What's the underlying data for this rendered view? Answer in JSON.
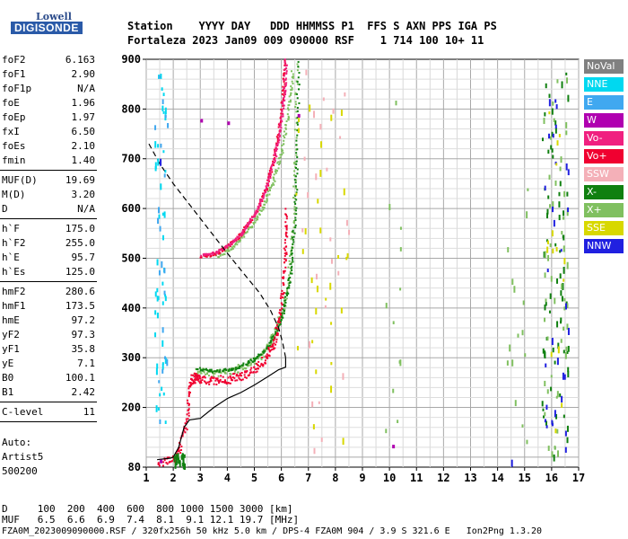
{
  "logo": {
    "top": "Lowell",
    "bottom": "DIGISONDE"
  },
  "header": {
    "line1": "Station    YYYY DAY   DDD HHMMSS P1  FFS S AXN PPS IGA PS",
    "line2": "Fortaleza 2023 Jan09 009 090000 RSF    1 714 100 10+ 11"
  },
  "params_group1": [
    {
      "name": "foF2",
      "value": "6.163"
    },
    {
      "name": "foF1",
      "value": "2.90"
    },
    {
      "name": "foF1p",
      "value": "N/A"
    },
    {
      "name": "foE",
      "value": "1.96"
    },
    {
      "name": "foEp",
      "value": "1.97"
    },
    {
      "name": "fxI",
      "value": "6.50"
    },
    {
      "name": "foEs",
      "value": "2.10"
    },
    {
      "name": "fmin",
      "value": "1.40"
    }
  ],
  "params_group2": [
    {
      "name": "MUF(D)",
      "value": "19.69"
    },
    {
      "name": "M(D)",
      "value": "3.20"
    },
    {
      "name": "D",
      "value": "N/A"
    }
  ],
  "params_group3": [
    {
      "name": "h`F",
      "value": "175.0"
    },
    {
      "name": "h`F2",
      "value": "255.0"
    },
    {
      "name": "h`E",
      "value": "95.7"
    },
    {
      "name": "h`Es",
      "value": "125.0"
    }
  ],
  "params_group4": [
    {
      "name": "hmF2",
      "value": "280.6"
    },
    {
      "name": "hmF1",
      "value": "173.5"
    },
    {
      "name": "hmE",
      "value": "97.2"
    },
    {
      "name": "yF2",
      "value": "97.3"
    },
    {
      "name": "yF1",
      "value": "35.8"
    },
    {
      "name": "yE",
      "value": "7.1"
    },
    {
      "name": "B0",
      "value": "100.1"
    },
    {
      "name": "B1",
      "value": "2.42"
    }
  ],
  "params_group5": [
    {
      "name": "C-level",
      "value": "11"
    }
  ],
  "autoscaling": {
    "line1": "Auto:",
    "line2": "Artist5",
    "line3": "500200"
  },
  "legend": [
    {
      "label": "NoVal",
      "color": "#808080"
    },
    {
      "label": "NNE",
      "color": "#00d8f0"
    },
    {
      "label": "E",
      "color": "#40a8f0"
    },
    {
      "label": "W",
      "color": "#b000b0"
    },
    {
      "label": "Vo-",
      "color": "#f02080"
    },
    {
      "label": "Vo+",
      "color": "#f00030"
    },
    {
      "label": "SSW",
      "color": "#f4b0b8"
    },
    {
      "label": "X-",
      "color": "#108010"
    },
    {
      "label": "X+",
      "color": "#80c060"
    },
    {
      "label": "SSE",
      "color": "#d8d800"
    },
    {
      "label": "NNW",
      "color": "#2020e0"
    }
  ],
  "bottom": {
    "d_line": "D     100  200  400  600  800 1000 1500 3000 [km]",
    "muf_line": "MUF   6.5  6.6  6.9  7.4  8.1  9.1 12.1 19.7 [MHz]",
    "footer": "FZA0M_2023009090000.RSF / 320fx256h 50 kHz 5.0 km / DPS-4 FZA0M 904 / 3.9 S 321.6 E   Ion2Png 1.3.20"
  },
  "chart_data": {
    "type": "scatter",
    "x_ticks": [
      "1",
      "2",
      "3",
      "4",
      "5",
      "6",
      "7",
      "8",
      "9",
      "10",
      "11",
      "12",
      "13",
      "14",
      "15",
      "16",
      "17"
    ],
    "y_ticks": [
      "80",
      "200",
      "300",
      "400",
      "500",
      "600",
      "700",
      "800",
      "900"
    ],
    "xlim": [
      1,
      17
    ],
    "ylim": [
      80,
      900
    ],
    "grid": true,
    "o_trace_lower": [
      [
        1.4,
        93
      ],
      [
        2.0,
        95
      ],
      [
        2.2,
        120
      ],
      [
        2.5,
        180
      ],
      [
        2.6,
        255
      ],
      [
        2.8,
        262
      ],
      [
        3.0,
        258
      ],
      [
        3.5,
        255
      ],
      [
        4.0,
        258
      ],
      [
        4.5,
        265
      ],
      [
        5.0,
        280
      ],
      [
        5.4,
        300
      ],
      [
        5.7,
        330
      ],
      [
        5.9,
        380
      ],
      [
        6.05,
        450
      ],
      [
        6.12,
        520
      ],
      [
        6.16,
        600
      ]
    ],
    "o_trace_upper": [
      [
        3.0,
        505
      ],
      [
        3.5,
        510
      ],
      [
        4.0,
        525
      ],
      [
        4.5,
        550
      ],
      [
        5.0,
        590
      ],
      [
        5.4,
        640
      ],
      [
        5.7,
        700
      ],
      [
        5.9,
        760
      ],
      [
        6.05,
        830
      ],
      [
        6.12,
        900
      ]
    ],
    "x_trace_lower": [
      [
        2.8,
        275
      ],
      [
        3.5,
        270
      ],
      [
        4.2,
        275
      ],
      [
        4.8,
        290
      ],
      [
        5.3,
        310
      ],
      [
        5.7,
        345
      ],
      [
        6.0,
        390
      ],
      [
        6.25,
        460
      ],
      [
        6.4,
        560
      ],
      [
        6.5,
        700
      ],
      [
        6.55,
        900
      ]
    ],
    "x_trace_upper": [
      [
        3.6,
        505
      ],
      [
        4.2,
        525
      ],
      [
        4.8,
        560
      ],
      [
        5.3,
        605
      ],
      [
        5.7,
        660
      ],
      [
        6.0,
        720
      ],
      [
        6.25,
        800
      ],
      [
        6.4,
        880
      ]
    ],
    "profile": [
      [
        1.4,
        95
      ],
      [
        1.9,
        98
      ],
      [
        2.0,
        100
      ],
      [
        2.2,
        120
      ],
      [
        2.4,
        160
      ],
      [
        2.6,
        175
      ],
      [
        3.0,
        178
      ],
      [
        3.5,
        200
      ],
      [
        4.0,
        218
      ],
      [
        4.5,
        230
      ],
      [
        5.0,
        245
      ],
      [
        5.5,
        262
      ],
      [
        5.9,
        276
      ],
      [
        6.16,
        281
      ],
      [
        6.16,
        300
      ],
      [
        6.05,
        330
      ],
      [
        5.9,
        360
      ],
      [
        5.6,
        395
      ],
      [
        5.2,
        430
      ],
      [
        4.6,
        470
      ],
      [
        4.0,
        510
      ],
      [
        3.5,
        545
      ],
      [
        3.0,
        580
      ],
      [
        2.5,
        615
      ],
      [
        2.0,
        650
      ],
      [
        1.5,
        690
      ],
      [
        1.1,
        730
      ]
    ],
    "w_marks": [
      [
        3.0,
        780
      ],
      [
        4.0,
        775
      ],
      [
        6.6,
        790
      ],
      [
        1.5,
        95
      ],
      [
        10.1,
        125
      ]
    ],
    "nnw_marks": [
      [
        15.9,
        820
      ],
      [
        16.0,
        340
      ],
      [
        16.2,
        300
      ],
      [
        16.4,
        270
      ],
      [
        16.6,
        360
      ],
      [
        16.1,
        195
      ],
      [
        1.5,
        700
      ],
      [
        14.5,
        95
      ]
    ]
  }
}
